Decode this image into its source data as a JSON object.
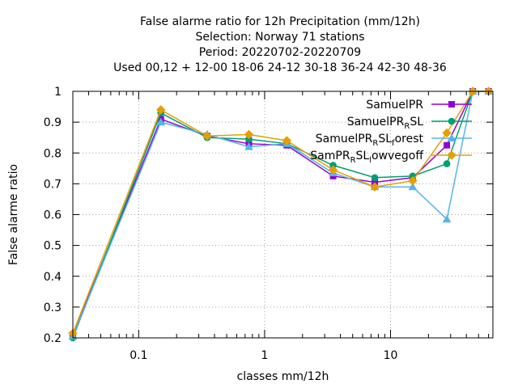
{
  "chart_data": {
    "type": "line",
    "title_lines": [
      "False alarme ratio  for 12h Precipitation (mm/12h)",
      "Selection: Norway     71 stations",
      "Period: 20220702-20220709",
      "Used  00,12  + 12-00 18-06 24-12 30-18 36-24 42-30 48-36"
    ],
    "xlabel": "classes mm/12h",
    "ylabel": "False alarme ratio",
    "x_scale": "log",
    "xlim": [
      0.03,
      65
    ],
    "ylim": [
      0.2,
      1.0
    ],
    "x_ticks": [
      {
        "value": 0.1,
        "label": "0.1"
      },
      {
        "value": 1,
        "label": "1"
      },
      {
        "value": 10,
        "label": "10"
      }
    ],
    "y_ticks": [
      {
        "value": 0.2,
        "label": "0.2"
      },
      {
        "value": 0.3,
        "label": "0.3"
      },
      {
        "value": 0.4,
        "label": "0.4"
      },
      {
        "value": 0.5,
        "label": "0.5"
      },
      {
        "value": 0.6,
        "label": "0.6"
      },
      {
        "value": 0.7,
        "label": "0.7"
      },
      {
        "value": 0.8,
        "label": "0.8"
      },
      {
        "value": 0.9,
        "label": "0.9"
      },
      {
        "value": 1.0,
        "label": "1"
      }
    ],
    "grid": true,
    "legend_position": "top-right",
    "x": [
      0.03,
      0.15,
      0.35,
      0.75,
      1.5,
      3.5,
      7.5,
      15,
      28,
      45,
      60
    ],
    "series": [
      {
        "name": "SamuelPR",
        "name_parts": [
          {
            "text": "SamuelPR",
            "sub": false
          }
        ],
        "color": "#9400d3",
        "marker": "square",
        "values": [
          0.21,
          0.91,
          0.855,
          0.83,
          0.825,
          0.725,
          0.705,
          0.72,
          0.825,
          1.0,
          1.0
        ]
      },
      {
        "name": "SamuelPR_R SL",
        "name_parts": [
          {
            "text": "SamuelPR",
            "sub": false
          },
          {
            "text": "R",
            "sub": true
          },
          {
            "text": "SL",
            "sub": false
          }
        ],
        "color": "#009e73",
        "marker": "circle",
        "values": [
          0.2,
          0.93,
          0.85,
          0.845,
          0.83,
          0.76,
          0.72,
          0.725,
          0.765,
          1.0,
          1.0
        ]
      },
      {
        "name": "SamuelPR_R SL_f orest",
        "name_parts": [
          {
            "text": "SamuelPR",
            "sub": false
          },
          {
            "text": "R",
            "sub": true
          },
          {
            "text": "SL",
            "sub": false
          },
          {
            "text": "f",
            "sub": true
          },
          {
            "text": "orest",
            "sub": false
          }
        ],
        "color": "#56b4e9",
        "marker": "triangle",
        "values": [
          0.205,
          0.9,
          0.86,
          0.82,
          0.83,
          0.735,
          0.69,
          0.69,
          0.585,
          1.0,
          1.0
        ]
      },
      {
        "name": "SamPR_R SL_l owvegoff",
        "name_parts": [
          {
            "text": "SamPR",
            "sub": false
          },
          {
            "text": "R",
            "sub": true
          },
          {
            "text": "SL",
            "sub": false
          },
          {
            "text": "l",
            "sub": true
          },
          {
            "text": "owvegoff",
            "sub": false
          }
        ],
        "color": "#e69f00",
        "marker": "diamond",
        "values": [
          0.215,
          0.94,
          0.855,
          0.86,
          0.84,
          0.745,
          0.69,
          0.71,
          0.865,
          1.0,
          1.0
        ]
      }
    ]
  }
}
